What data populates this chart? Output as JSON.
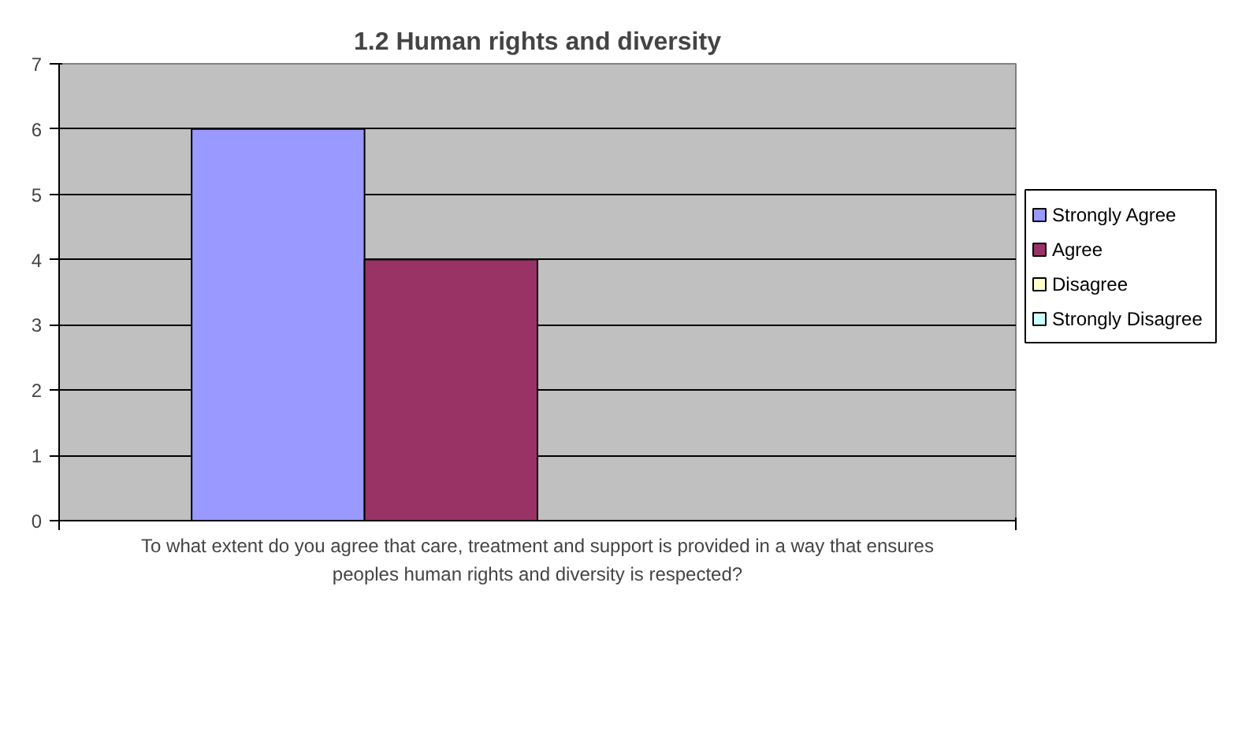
{
  "chart_data": {
    "type": "bar",
    "title": "1.2 Human rights and diversity",
    "xlabel": "To what extent do you agree that care, treatment and support is provided in a way that ensures peoples human rights and diversity is respected?",
    "categories": [
      null
    ],
    "series": [
      {
        "name": "Strongly Agree",
        "color": "#9999ff",
        "values": [
          6
        ]
      },
      {
        "name": "Agree",
        "color": "#993366",
        "values": [
          4
        ]
      },
      {
        "name": "Disagree",
        "color": "#ffffcc",
        "values": [
          0
        ]
      },
      {
        "name": "Strongly Disagree",
        "color": "#ccffff",
        "values": [
          0
        ]
      }
    ],
    "ylim": [
      0,
      7
    ],
    "yticks": [
      0,
      1,
      2,
      3,
      4,
      5,
      6,
      7
    ],
    "grid": "y",
    "legend": "right"
  }
}
